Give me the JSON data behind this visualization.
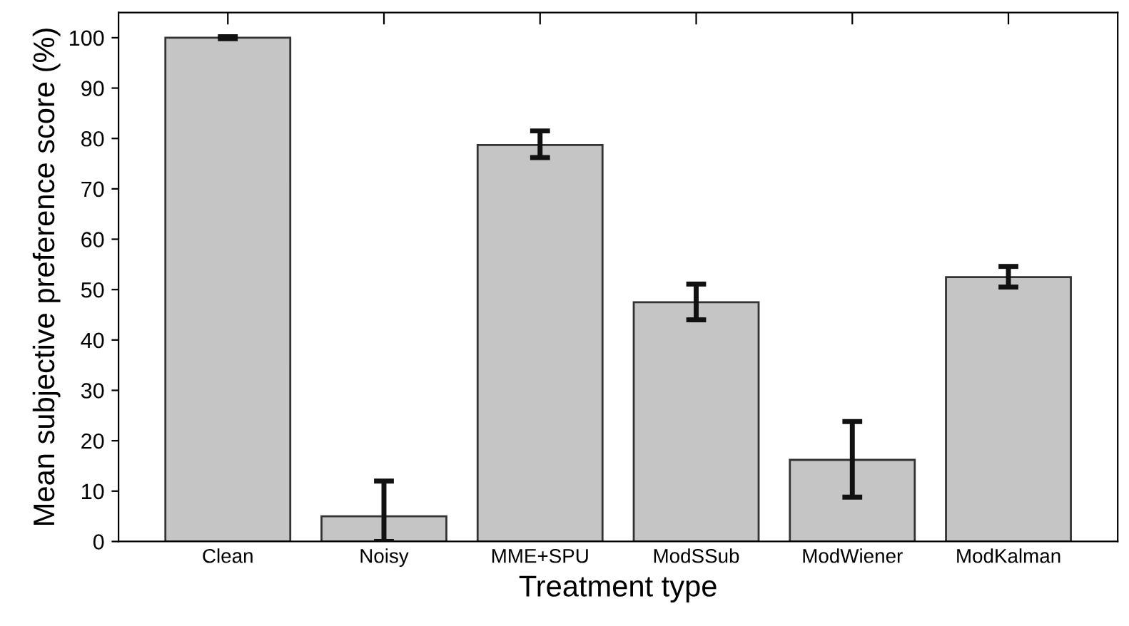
{
  "chart_data": {
    "type": "bar",
    "xlabel": "Treatment type",
    "ylabel": "Mean subjective preference score (%)",
    "categories": [
      "Clean",
      "Noisy",
      "MME+SPU",
      "ModSSub",
      "ModWiener",
      "ModKalman"
    ],
    "values": [
      100,
      5,
      78.7,
      47.5,
      16.2,
      52.5
    ],
    "errors": [
      [
        99.8,
        100.2
      ],
      [
        0,
        12
      ],
      [
        76.2,
        81.5
      ],
      [
        44.0,
        51.1
      ],
      [
        8.8,
        23.8
      ],
      [
        50.5,
        54.6
      ]
    ],
    "color": "#c4c5c4",
    "ylim": [
      0,
      105
    ],
    "yticks": [
      0,
      10,
      20,
      30,
      40,
      50,
      60,
      70,
      80,
      90,
      100
    ],
    "grid": false,
    "legend": false
  }
}
